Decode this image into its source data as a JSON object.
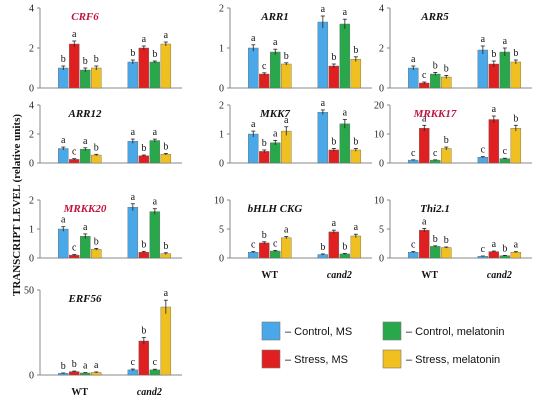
{
  "ylabel": "TRANSCRIPT LEVEL (relative units)",
  "group_labels": [
    "WT",
    "cand2"
  ],
  "legend": [
    {
      "label": "– Control, MS",
      "color": "#4aa8e8"
    },
    {
      "label": "– Stress, MS",
      "color": "#e02020"
    },
    {
      "label": "– Control, melatonin",
      "color": "#28a84a"
    },
    {
      "label": "– Stress, melatonin",
      "color": "#f0c020"
    }
  ],
  "chart_data": [
    {
      "type": "bar",
      "title": "CRF6",
      "title_color": "#c0143c",
      "ylim": [
        0,
        4
      ],
      "yticks": [
        0,
        2,
        4
      ],
      "categories": [
        "WT",
        "cand2"
      ],
      "series": [
        {
          "name": "Control, MS",
          "values": [
            1.0,
            1.3
          ],
          "errors": [
            0.1,
            0.1
          ],
          "letters": [
            "b",
            "b"
          ]
        },
        {
          "name": "Stress, MS",
          "values": [
            2.2,
            2.0
          ],
          "errors": [
            0.15,
            0.1
          ],
          "letters": [
            "a",
            "a"
          ]
        },
        {
          "name": "Control, melatonin",
          "values": [
            0.9,
            1.3
          ],
          "errors": [
            0.1,
            0.05
          ],
          "letters": [
            "b",
            "b"
          ]
        },
        {
          "name": "Stress, melatonin",
          "values": [
            1.0,
            2.2
          ],
          "errors": [
            0.1,
            0.1
          ],
          "letters": [
            "b",
            "a"
          ]
        }
      ]
    },
    {
      "type": "bar",
      "title": "ARR1",
      "title_color": "#111111",
      "ylim": [
        0,
        2
      ],
      "yticks": [
        0,
        1,
        2
      ],
      "categories": [
        "WT",
        "cand2"
      ],
      "series": [
        {
          "name": "Control, MS",
          "values": [
            1.0,
            1.65
          ],
          "errors": [
            0.08,
            0.15
          ],
          "letters": [
            "a",
            "a"
          ]
        },
        {
          "name": "Stress, MS",
          "values": [
            0.35,
            0.55
          ],
          "errors": [
            0.03,
            0.05
          ],
          "letters": [
            "c",
            "b"
          ]
        },
        {
          "name": "Control, melatonin",
          "values": [
            0.9,
            1.6
          ],
          "errors": [
            0.07,
            0.12
          ],
          "letters": [
            "a",
            "a"
          ]
        },
        {
          "name": "Stress, melatonin",
          "values": [
            0.6,
            0.72
          ],
          "errors": [
            0.03,
            0.06
          ],
          "letters": [
            "b",
            "b"
          ]
        }
      ]
    },
    {
      "type": "bar",
      "title": "ARR5",
      "title_color": "#111111",
      "ylim": [
        0,
        4
      ],
      "yticks": [
        0,
        2,
        4
      ],
      "categories": [
        "WT",
        "cand2"
      ],
      "series": [
        {
          "name": "Control, MS",
          "values": [
            1.0,
            1.9
          ],
          "errors": [
            0.1,
            0.2
          ],
          "letters": [
            "a",
            "a"
          ]
        },
        {
          "name": "Stress, MS",
          "values": [
            0.25,
            1.2
          ],
          "errors": [
            0.05,
            0.15
          ],
          "letters": [
            "c",
            "b"
          ]
        },
        {
          "name": "Control, melatonin",
          "values": [
            0.7,
            1.8
          ],
          "errors": [
            0.08,
            0.2
          ],
          "letters": [
            "b",
            "a"
          ]
        },
        {
          "name": "Stress, melatonin",
          "values": [
            0.55,
            1.3
          ],
          "errors": [
            0.08,
            0.1
          ],
          "letters": [
            "b",
            "b"
          ]
        }
      ]
    },
    {
      "type": "bar",
      "title": "ARR12",
      "title_color": "#111111",
      "ylim": [
        0,
        4
      ],
      "yticks": [
        0,
        2,
        4
      ],
      "categories": [
        "WT",
        "cand2"
      ],
      "series": [
        {
          "name": "Control, MS",
          "values": [
            1.0,
            1.5
          ],
          "errors": [
            0.1,
            0.15
          ],
          "letters": [
            "a",
            "a"
          ]
        },
        {
          "name": "Stress, MS",
          "values": [
            0.25,
            0.5
          ],
          "errors": [
            0.05,
            0.05
          ],
          "letters": [
            "c",
            "b"
          ]
        },
        {
          "name": "Control, melatonin",
          "values": [
            0.95,
            1.55
          ],
          "errors": [
            0.1,
            0.1
          ],
          "letters": [
            "a",
            "a"
          ]
        },
        {
          "name": "Stress, melatonin",
          "values": [
            0.55,
            0.6
          ],
          "errors": [
            0.05,
            0.05
          ],
          "letters": [
            "b",
            "b"
          ]
        }
      ]
    },
    {
      "type": "bar",
      "title": "MKK7",
      "title_color": "#111111",
      "ylim": [
        0,
        2
      ],
      "yticks": [
        0,
        1,
        2
      ],
      "categories": [
        "WT",
        "cand2"
      ],
      "series": [
        {
          "name": "Control, MS",
          "values": [
            1.0,
            1.75
          ],
          "errors": [
            0.1,
            0.08
          ],
          "letters": [
            "a",
            "a"
          ]
        },
        {
          "name": "Stress, MS",
          "values": [
            0.4,
            0.45
          ],
          "errors": [
            0.05,
            0.05
          ],
          "letters": [
            "b",
            "b"
          ]
        },
        {
          "name": "Control, melatonin",
          "values": [
            0.7,
            1.35
          ],
          "errors": [
            0.08,
            0.15
          ],
          "letters": [
            "a",
            "a"
          ]
        },
        {
          "name": "Stress, melatonin",
          "values": [
            1.1,
            0.45
          ],
          "errors": [
            0.15,
            0.05
          ],
          "letters": [
            "a",
            "b"
          ]
        }
      ]
    },
    {
      "type": "bar",
      "title": "MRKK17",
      "title_color": "#c0143c",
      "ylim": [
        0,
        20
      ],
      "yticks": [
        0,
        10,
        20
      ],
      "categories": [
        "WT",
        "cand2"
      ],
      "series": [
        {
          "name": "Control, MS",
          "values": [
            1.0,
            2.0
          ],
          "errors": [
            0.1,
            0.2
          ],
          "letters": [
            "c",
            "c"
          ]
        },
        {
          "name": "Stress, MS",
          "values": [
            12.0,
            15.0
          ],
          "errors": [
            1.0,
            1.2
          ],
          "letters": [
            "a",
            "a"
          ]
        },
        {
          "name": "Control, melatonin",
          "values": [
            1.0,
            1.5
          ],
          "errors": [
            0.1,
            0.15
          ],
          "letters": [
            "c",
            "c"
          ]
        },
        {
          "name": "Stress, melatonin",
          "values": [
            5.0,
            12.0
          ],
          "errors": [
            0.5,
            1.0
          ],
          "letters": [
            "b",
            "b"
          ]
        }
      ]
    },
    {
      "type": "bar",
      "title": "MRKK20",
      "title_color": "#c0143c",
      "ylim": [
        0,
        2
      ],
      "yticks": [
        0,
        1,
        2
      ],
      "categories": [
        "WT",
        "cand2"
      ],
      "series": [
        {
          "name": "Control, MS",
          "values": [
            1.0,
            1.75
          ],
          "errors": [
            0.08,
            0.12
          ],
          "letters": [
            "a",
            "a"
          ]
        },
        {
          "name": "Stress, MS",
          "values": [
            0.1,
            0.2
          ],
          "errors": [
            0.02,
            0.03
          ],
          "letters": [
            "c",
            "b"
          ]
        },
        {
          "name": "Control, melatonin",
          "values": [
            0.75,
            1.6
          ],
          "errors": [
            0.08,
            0.1
          ],
          "letters": [
            "a",
            "a"
          ]
        },
        {
          "name": "Stress, melatonin",
          "values": [
            0.3,
            0.15
          ],
          "errors": [
            0.03,
            0.03
          ],
          "letters": [
            "b",
            "b"
          ]
        }
      ]
    },
    {
      "type": "bar",
      "title": "bHLH CKG",
      "title_color": "#111111",
      "ylim": [
        0,
        10
      ],
      "yticks": [
        0,
        5,
        10
      ],
      "categories": [
        "WT",
        "cand2"
      ],
      "series": [
        {
          "name": "Control, MS",
          "values": [
            1.0,
            0.6
          ],
          "errors": [
            0.1,
            0.1
          ],
          "letters": [
            "c",
            "b"
          ]
        },
        {
          "name": "Stress, MS",
          "values": [
            2.6,
            4.5
          ],
          "errors": [
            0.2,
            0.3
          ],
          "letters": [
            "b",
            "a"
          ]
        },
        {
          "name": "Control, melatonin",
          "values": [
            1.2,
            0.7
          ],
          "errors": [
            0.1,
            0.1
          ],
          "letters": [
            "c",
            "b"
          ]
        },
        {
          "name": "Stress, melatonin",
          "values": [
            3.5,
            3.8
          ],
          "errors": [
            0.2,
            0.3
          ],
          "letters": [
            "a",
            "a"
          ]
        }
      ]
    },
    {
      "type": "bar",
      "title": "Thi2.1",
      "title_color": "#111111",
      "ylim": [
        0,
        10
      ],
      "yticks": [
        0,
        5,
        10
      ],
      "categories": [
        "WT",
        "cand2"
      ],
      "series": [
        {
          "name": "Control, MS",
          "values": [
            1.0,
            0.3
          ],
          "errors": [
            0.1,
            0.05
          ],
          "letters": [
            "c",
            "c"
          ]
        },
        {
          "name": "Stress, MS",
          "values": [
            4.8,
            1.1
          ],
          "errors": [
            0.3,
            0.1
          ],
          "letters": [
            "a",
            "a"
          ]
        },
        {
          "name": "Control, melatonin",
          "values": [
            2.0,
            0.4
          ],
          "errors": [
            0.1,
            0.05
          ],
          "letters": [
            "b",
            "b"
          ]
        },
        {
          "name": "Stress, melatonin",
          "values": [
            1.8,
            1.0
          ],
          "errors": [
            0.1,
            0.1
          ],
          "letters": [
            "b",
            "a"
          ]
        }
      ]
    },
    {
      "type": "bar",
      "title": "ERF56",
      "title_color": "#111111",
      "ylim": [
        0,
        50
      ],
      "yticks": [
        0,
        50
      ],
      "categories": [
        "WT",
        "cand2"
      ],
      "series": [
        {
          "name": "Control, MS",
          "values": [
            1.0,
            3.0
          ],
          "errors": [
            0.2,
            0.5
          ],
          "letters": [
            "b",
            "c"
          ]
        },
        {
          "name": "Stress, MS",
          "values": [
            2.0,
            20.0
          ],
          "errors": [
            0.3,
            2.0
          ],
          "letters": [
            "b",
            "b"
          ]
        },
        {
          "name": "Control, melatonin",
          "values": [
            1.2,
            3.0
          ],
          "errors": [
            0.2,
            0.4
          ],
          "letters": [
            "a",
            "c"
          ]
        },
        {
          "name": "Stress, melatonin",
          "values": [
            1.5,
            40.0
          ],
          "errors": [
            0.3,
            4.0
          ],
          "letters": [
            "a",
            "a"
          ]
        }
      ]
    }
  ]
}
